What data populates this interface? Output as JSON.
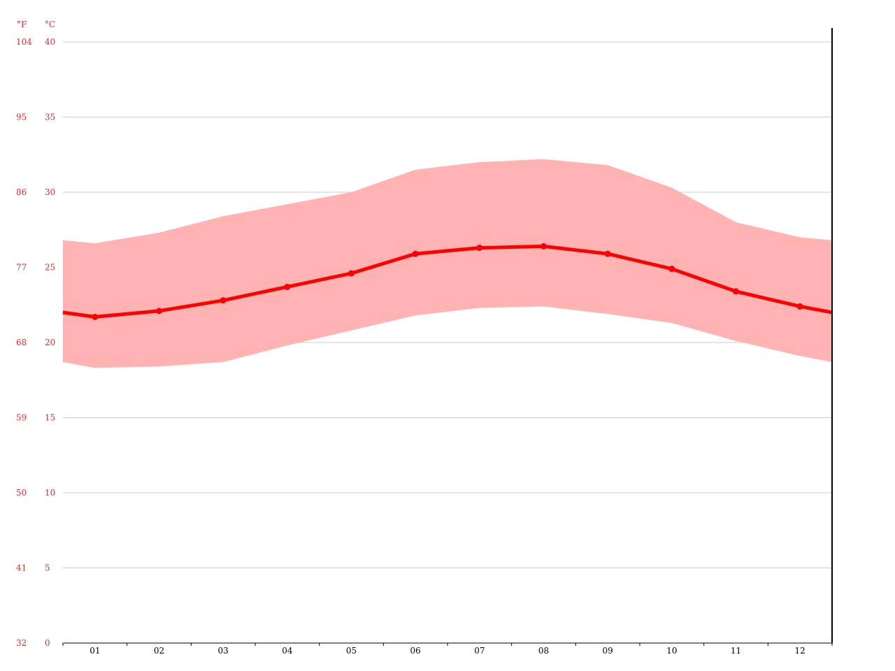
{
  "chart_data": {
    "type": "line",
    "title": "",
    "xlabel": "",
    "ylabel": "",
    "unit_f_label": "°F",
    "unit_c_label": "°C",
    "categories": [
      "01",
      "02",
      "03",
      "04",
      "05",
      "06",
      "07",
      "08",
      "09",
      "10",
      "11",
      "12"
    ],
    "ylim": [
      0,
      40
    ],
    "y_ticks_c": [
      "0",
      "5",
      "10",
      "15",
      "20",
      "25",
      "30",
      "35",
      "40"
    ],
    "y_ticks_f": [
      "32",
      "41",
      "50",
      "59",
      "68",
      "77",
      "86",
      "95",
      "104"
    ],
    "grid": true,
    "series": [
      {
        "role": "mean",
        "values": [
          21.7,
          22.1,
          22.8,
          23.7,
          24.6,
          25.9,
          26.3,
          26.4,
          25.9,
          24.9,
          23.4,
          22.4
        ]
      },
      {
        "role": "max",
        "values": [
          26.6,
          27.3,
          28.4,
          29.2,
          30.0,
          31.5,
          32.0,
          32.2,
          31.8,
          30.3,
          28.0,
          27.0
        ]
      },
      {
        "role": "min",
        "values": [
          18.3,
          18.4,
          18.7,
          19.8,
          20.8,
          21.8,
          22.3,
          22.4,
          21.9,
          21.3,
          20.1,
          19.1
        ]
      }
    ],
    "edge_values": {
      "mean_start": 22.0,
      "mean_end": 22.0,
      "max_start": 26.8,
      "max_end": 26.8,
      "min_start": 18.7,
      "min_end": 18.7
    },
    "colors": {
      "line": "#ff0000",
      "band": "#ffb3b3",
      "grid": "#cccccc",
      "axis_labels": "#e8262b",
      "x_labels": "#000000"
    }
  }
}
